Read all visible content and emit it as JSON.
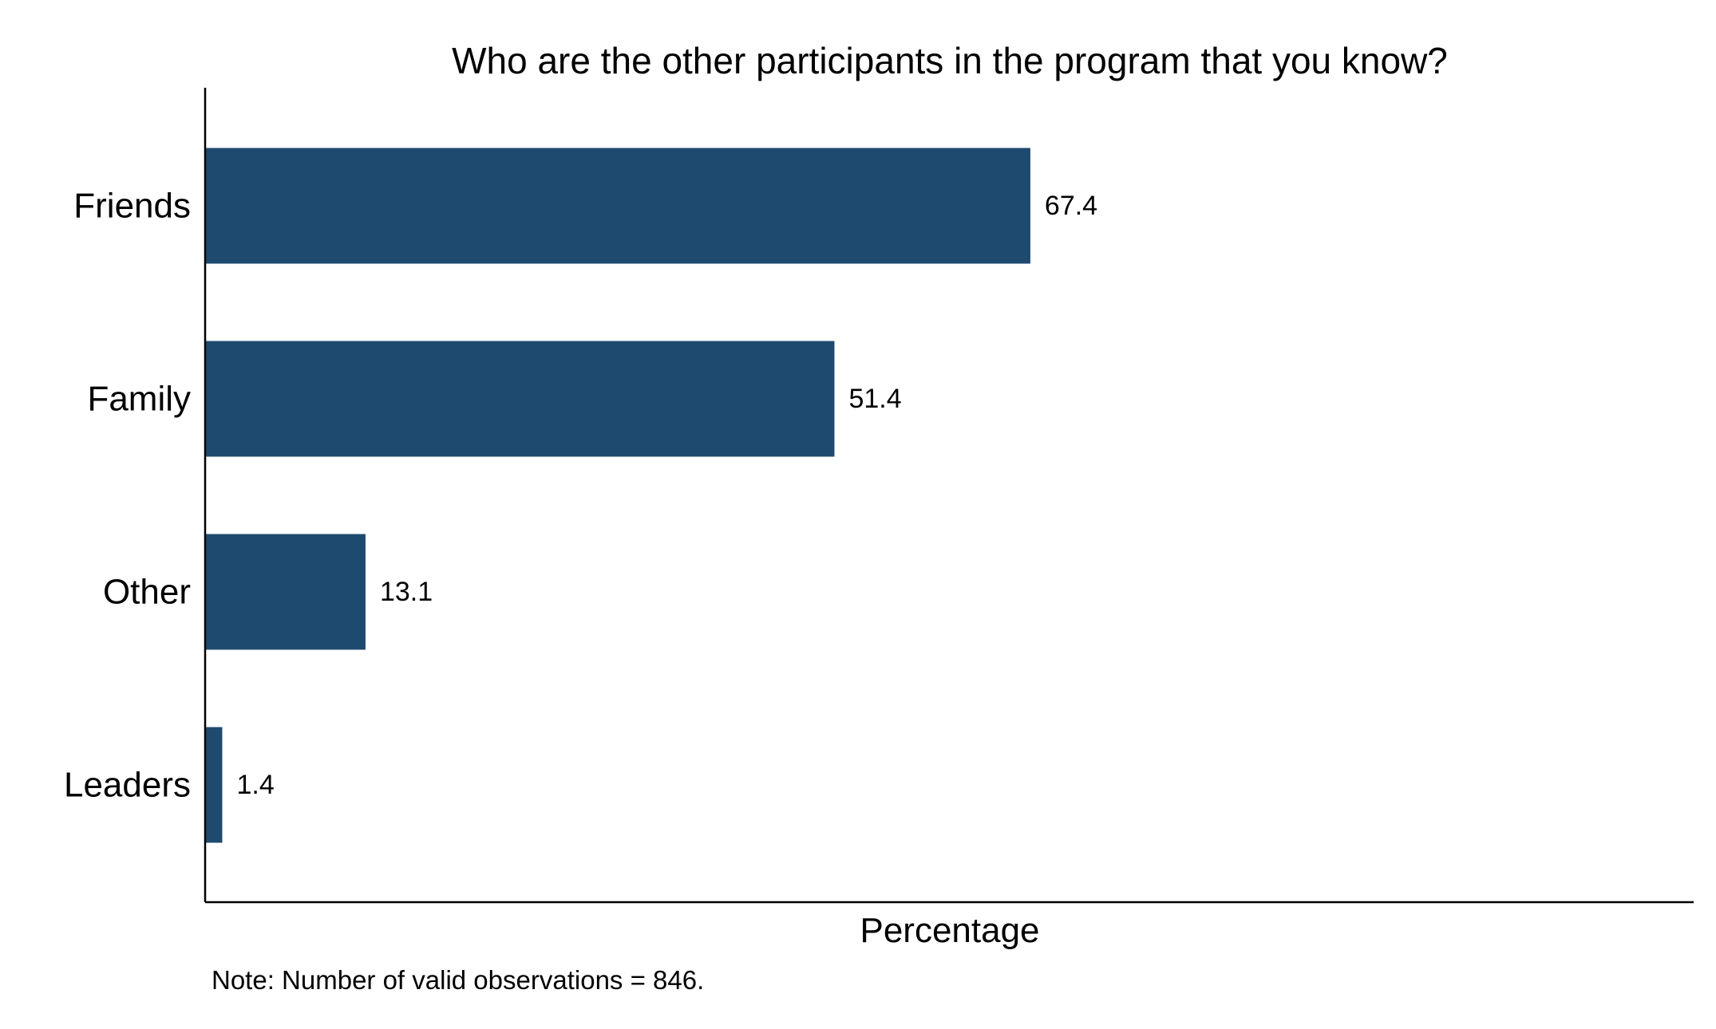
{
  "chart_data": {
    "type": "bar",
    "orientation": "horizontal",
    "title": "Who are the other participants in the program that you know?",
    "categories": [
      "Friends",
      "Family",
      "Other",
      "Leaders"
    ],
    "values": [
      67.4,
      51.4,
      13.1,
      1.4
    ],
    "value_labels": [
      "67.4",
      "51.4",
      "13.1",
      "1.4"
    ],
    "xlabel": "Percentage",
    "ylabel": "",
    "xlim": [
      0,
      82
    ],
    "grid": false,
    "note": "Note: Number of valid observations = 846.",
    "bar_color": "#1f4a70"
  }
}
